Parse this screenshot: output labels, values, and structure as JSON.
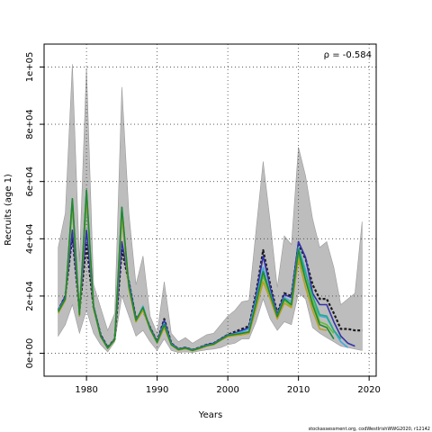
{
  "chart_data": {
    "type": "line",
    "title": "",
    "xlabel": "Years",
    "ylabel": "Recruits (age 1)",
    "xlim": [
      1974,
      2021
    ],
    "ylim": [
      -8000,
      108000
    ],
    "xticks": [
      1980,
      1990,
      2000,
      2010,
      2020
    ],
    "yticks": [
      0,
      20000,
      40000,
      60000,
      80000,
      100000
    ],
    "xtick_labels": [
      "1980",
      "1990",
      "2000",
      "2010",
      "2020"
    ],
    "ytick_labels": [
      "0e+00",
      "2e+04",
      "4e+04",
      "6e+04",
      "8e+04",
      "1e+05"
    ],
    "grid": true,
    "annotation": "ρ = -0.584",
    "footer": "stockassessment.org, codWestIrishWWG2020, r12142",
    "band": {
      "x": [
        1976,
        1977,
        1978,
        1979,
        1980,
        1981,
        1982,
        1983,
        1984,
        1985,
        1986,
        1987,
        1988,
        1989,
        1990,
        1991,
        1992,
        1993,
        1994,
        1995,
        1996,
        1997,
        1998,
        1999,
        2000,
        2001,
        2002,
        2003,
        2004,
        2005,
        2006,
        2007,
        2008,
        2009,
        2010,
        2011,
        2012,
        2013,
        2014,
        2015,
        2016,
        2017,
        2018,
        2019
      ],
      "lower": [
        6000,
        10000,
        17000,
        7000,
        15000,
        7000,
        3000,
        500,
        4000,
        20000,
        13000,
        6000,
        8000,
        4000,
        1000,
        5000,
        1000,
        300,
        500,
        300,
        800,
        1200,
        1500,
        2000,
        3000,
        3500,
        5000,
        5000,
        11000,
        19000,
        12000,
        8000,
        11000,
        10000,
        21000,
        19000,
        9000,
        7000,
        5500,
        4000,
        2500,
        2000,
        1500,
        1000
      ],
      "upper": [
        37000,
        49000,
        101000,
        32000,
        100000,
        24000,
        16000,
        8000,
        14000,
        93000,
        49000,
        24000,
        34000,
        13000,
        7000,
        25000,
        7000,
        4000,
        5500,
        3500,
        5000,
        6500,
        7000,
        10000,
        13000,
        15000,
        18000,
        18500,
        43000,
        67000,
        46000,
        23000,
        41000,
        38000,
        72000,
        62000,
        47000,
        37000,
        39000,
        30000,
        17000,
        19000,
        21000,
        46000
      ]
    },
    "series": [
      {
        "color": "#1a1a1a",
        "dashed": true,
        "width": 2.2,
        "x": [
          1976,
          1977,
          1978,
          1979,
          1980,
          1981,
          1982,
          1983,
          1984,
          1985,
          1986,
          1987,
          1988,
          1989,
          1990,
          1991,
          1992,
          1993,
          1994,
          1995,
          1996,
          1997,
          1998,
          1999,
          2000,
          2001,
          2002,
          2003,
          2004,
          2005,
          2006,
          2007,
          2008,
          2009,
          2010,
          2011,
          2012,
          2013,
          2014,
          2015,
          2016,
          2017,
          2018,
          2019
        ],
        "values": [
          15000,
          20000,
          41000,
          15000,
          38000,
          16000,
          6500,
          2000,
          5000,
          36000,
          25000,
          12000,
          15000,
          9000,
          4000,
          12000,
          3500,
          1500,
          2000,
          1200,
          2000,
          3000,
          3500,
          5000,
          6500,
          7500,
          8500,
          9500,
          21000,
          36000,
          24000,
          14000,
          21000,
          20000,
          38000,
          33000,
          24000,
          19000,
          19000,
          14000,
          8500,
          8500,
          8000,
          8000
        ]
      },
      {
        "color": "#3333aa",
        "dashed": false,
        "width": 1.6,
        "x": [
          1976,
          1977,
          1978,
          1979,
          1980,
          1981,
          1982,
          1983,
          1984,
          1985,
          1986,
          1987,
          1988,
          1989,
          1990,
          1991,
          1992,
          1993,
          1994,
          1995,
          1996,
          1997,
          1998,
          1999,
          2000,
          2001,
          2002,
          2003,
          2004,
          2005,
          2006,
          2007,
          2008,
          2009,
          2010,
          2011,
          2012,
          2013,
          2014,
          2015,
          2016,
          2017,
          2018
        ],
        "values": [
          15000,
          20000,
          43000,
          15000,
          43000,
          16500,
          6500,
          2000,
          5000,
          39000,
          25000,
          12000,
          15500,
          9000,
          4000,
          11500,
          3500,
          1500,
          2000,
          1200,
          2000,
          3000,
          3500,
          5000,
          6500,
          7000,
          8000,
          9000,
          20000,
          34000,
          23000,
          13500,
          20500,
          19500,
          39000,
          33500,
          21000,
          17000,
          17000,
          11000,
          6000,
          3500,
          2500
        ]
      },
      {
        "color": "#44aadd",
        "dashed": false,
        "width": 1.6,
        "x": [
          1976,
          1977,
          1978,
          1979,
          1980,
          1981,
          1982,
          1983,
          1984,
          1985,
          1986,
          1987,
          1988,
          1989,
          1990,
          1991,
          1992,
          1993,
          1994,
          1995,
          1996,
          1997,
          1998,
          1999,
          2000,
          2001,
          2002,
          2003,
          2004,
          2005,
          2006,
          2007,
          2008,
          2009,
          2010,
          2011,
          2012,
          2013,
          2014,
          2015,
          2016,
          2017
        ],
        "values": [
          15000,
          19000,
          51000,
          14000,
          52000,
          16000,
          6000,
          1800,
          4800,
          47000,
          24000,
          11500,
          16500,
          8500,
          3800,
          10500,
          3200,
          1400,
          1900,
          1100,
          1900,
          2800,
          3300,
          4800,
          6300,
          6800,
          7500,
          8500,
          18500,
          30000,
          21000,
          13000,
          19500,
          18000,
          37000,
          29000,
          18000,
          13000,
          12500,
          8000,
          4000,
          2000
        ]
      },
      {
        "color": "#22aa88",
        "dashed": false,
        "width": 1.6,
        "x": [
          1976,
          1977,
          1978,
          1979,
          1980,
          1981,
          1982,
          1983,
          1984,
          1985,
          1986,
          1987,
          1988,
          1989,
          1990,
          1991,
          1992,
          1993,
          1994,
          1995,
          1996,
          1997,
          1998,
          1999,
          2000,
          2001,
          2002,
          2003,
          2004,
          2005,
          2006,
          2007,
          2008,
          2009,
          2010,
          2011,
          2012,
          2013,
          2014,
          2015,
          2016
        ],
        "values": [
          14500,
          19000,
          54000,
          13500,
          57000,
          16000,
          6000,
          1800,
          4800,
          51000,
          23500,
          11500,
          16000,
          8500,
          3800,
          10000,
          3000,
          1300,
          1800,
          1000,
          1800,
          2700,
          3200,
          4700,
          6200,
          6600,
          7000,
          7500,
          17500,
          28500,
          20500,
          12800,
          19000,
          17000,
          36500,
          28000,
          20000,
          13500,
          13000,
          8000,
          5000
        ]
      },
      {
        "color": "#66bb33",
        "dashed": false,
        "width": 1.6,
        "x": [
          1976,
          1977,
          1978,
          1979,
          1980,
          1981,
          1982,
          1983,
          1984,
          1985,
          1986,
          1987,
          1988,
          1989,
          1990,
          1991,
          1992,
          1993,
          1994,
          1995,
          1996,
          1997,
          1998,
          1999,
          2000,
          2001,
          2002,
          2003,
          2004,
          2005,
          2006,
          2007,
          2008,
          2009,
          2010,
          2011,
          2012,
          2013,
          2014,
          2015
        ],
        "values": [
          14500,
          19000,
          53000,
          13500,
          55000,
          16000,
          6000,
          1800,
          4800,
          49000,
          23000,
          11000,
          15500,
          8500,
          3700,
          9500,
          3000,
          1200,
          1700,
          1000,
          1700,
          2600,
          3100,
          4600,
          6000,
          6400,
          6800,
          7200,
          16500,
          27000,
          20000,
          12500,
          18500,
          16500,
          34000,
          26000,
          18500,
          11000,
          10000,
          7000
        ]
      },
      {
        "color": "#b8a020",
        "dashed": false,
        "width": 1.6,
        "x": [
          1976,
          1977,
          1978,
          1979,
          1980,
          1981,
          1982,
          1983,
          1984,
          1985,
          1986,
          1987,
          1988,
          1989,
          1990,
          1991,
          1992,
          1993,
          1994,
          1995,
          1996,
          1997,
          1998,
          1999,
          2000,
          2001,
          2002,
          2003,
          2004,
          2005,
          2006,
          2007,
          2008,
          2009,
          2010,
          2011,
          2012,
          2013,
          2014
        ],
        "values": [
          14000,
          18500,
          52000,
          13000,
          54000,
          15500,
          5800,
          1700,
          4600,
          48000,
          22500,
          11000,
          15000,
          8300,
          3600,
          9000,
          2900,
          1100,
          1600,
          900,
          1600,
          2500,
          3000,
          4500,
          5800,
          6200,
          6500,
          7000,
          15500,
          25000,
          19000,
          12000,
          17500,
          16000,
          33000,
          23000,
          15000,
          8500,
          8000
        ]
      },
      {
        "color": "#228833",
        "dashed": false,
        "width": 1.6,
        "x": [
          1976,
          1977,
          1978,
          1979,
          1980,
          1981,
          1982,
          1983,
          1984,
          1985,
          1986,
          1987,
          1988,
          1989,
          1990,
          1991,
          1992,
          1993,
          1994,
          1995,
          1996,
          1997,
          1998,
          1999,
          2000,
          2001,
          2002,
          2003,
          2004,
          2005,
          2006,
          2007,
          2008,
          2009,
          2010,
          2011,
          2012,
          2013,
          2014,
          2015
        ],
        "values": [
          14500,
          19000,
          54000,
          13500,
          57000,
          16000,
          6000,
          1800,
          4800,
          51000,
          23500,
          11500,
          16000,
          8500,
          3800,
          10000,
          3000,
          1300,
          1800,
          1000,
          1800,
          2700,
          3200,
          4700,
          6200,
          6600,
          7000,
          7500,
          17500,
          28500,
          20500,
          12800,
          19000,
          17000,
          36000,
          25500,
          17000,
          10000,
          9000,
          5000
        ]
      }
    ]
  }
}
